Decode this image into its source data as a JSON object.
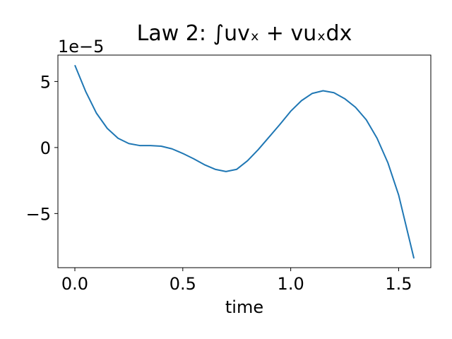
{
  "chart_data": {
    "type": "line",
    "title": "Law 2: ∫uvₓ + vuₓdx",
    "x_label": "time",
    "y_offset_label": "1e−5",
    "x": [
      0,
      0.05,
      0.1,
      0.15,
      0.2,
      0.25,
      0.3,
      0.35,
      0.4,
      0.45,
      0.5,
      0.55,
      0.6,
      0.65,
      0.7,
      0.75,
      0.8,
      0.85,
      0.9,
      0.95,
      1.0,
      1.05,
      1.1,
      1.15,
      1.2,
      1.25,
      1.3,
      1.35,
      1.4,
      1.45,
      1.5,
      1.5708
    ],
    "series": [
      {
        "color": "#1f77b4",
        "values": [
          6.24,
          4.25,
          2.6,
          1.45,
          0.7,
          0.3,
          0.15,
          0.15,
          0.1,
          -0.1,
          -0.45,
          -0.85,
          -1.3,
          -1.65,
          -1.82,
          -1.65,
          -1.0,
          -0.15,
          0.8,
          1.75,
          2.75,
          3.55,
          4.1,
          4.3,
          4.15,
          3.7,
          3.05,
          2.1,
          0.7,
          -1.15,
          -3.6,
          -8.4
        ]
      }
    ],
    "xlim": [
      -0.0785,
      1.649
    ],
    "ylim": [
      -9.1,
      7.0
    ],
    "xticks": [
      {
        "value": 0,
        "label": "0.0"
      },
      0.5,
      {
        "value": 1,
        "label": "1.0"
      },
      1.5
    ],
    "yticks": [
      {
        "value": -5,
        "label": "−5"
      },
      0,
      5
    ]
  }
}
